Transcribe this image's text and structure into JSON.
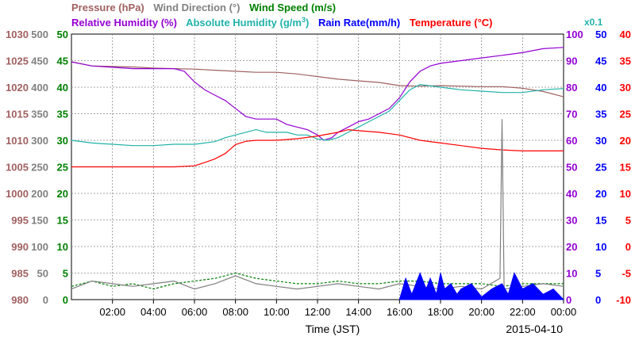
{
  "chart_data": {
    "type": "line",
    "date": "2015-04-10",
    "xlabel": "Time (JST)",
    "x_range": [
      0,
      24
    ],
    "x_ticks": [
      "02:00",
      "04:00",
      "06:00",
      "08:00",
      "10:00",
      "12:00",
      "14:00",
      "16:00",
      "18:00",
      "20:00",
      "22:00",
      "00:00"
    ],
    "grid": true,
    "titles": {
      "pressure": "Pressure (hPa)",
      "wind_direction": "Wind Direction (°)",
      "wind_speed": "Wind Speed (m/s)",
      "relative_humidity": "Relative Humidity (%)",
      "absolute_humidity": "Absolute Humidity (g/m",
      "absolute_humidity_sup": "3",
      "absolute_humidity_end": ")",
      "rain_rate": "Rain Rate(mm/h)",
      "temperature": "Temperature (°C)",
      "scale_note": "x0.1"
    },
    "colors": {
      "pressure": "#a06060",
      "wind_direction": "#808080",
      "wind_speed": "#008000",
      "relative_humidity": "#9400d3",
      "absolute_humidity": "#20b2aa",
      "rain_rate": "#0000ff",
      "temperature": "#ff0000"
    },
    "axes": {
      "pressure": {
        "ticks": [
          "980",
          "985",
          "990",
          "995",
          "1000",
          "1005",
          "1010",
          "1015",
          "1020",
          "1025",
          "1030"
        ],
        "range": [
          980,
          1030
        ]
      },
      "wind_direction": {
        "ticks": [
          "0",
          "50",
          "100",
          "150",
          "200",
          "250",
          "300",
          "350",
          "400",
          "450",
          "500"
        ],
        "range": [
          0,
          500
        ]
      },
      "wind_speed": {
        "ticks": [
          "0",
          "5",
          "10",
          "15",
          "20",
          "25",
          "30",
          "35",
          "40",
          "45",
          "50"
        ],
        "range": [
          0,
          50
        ]
      },
      "relative_humidity": {
        "ticks": [
          "0",
          "10",
          "20",
          "30",
          "40",
          "50",
          "60",
          "70",
          "80",
          "90",
          "100"
        ],
        "range": [
          0,
          100
        ]
      },
      "rain_rate": {
        "ticks": [
          "0",
          "5",
          "10",
          "15",
          "20",
          "25",
          "30",
          "35",
          "40",
          "45",
          "50"
        ],
        "range": [
          0,
          50
        ]
      },
      "temperature": {
        "ticks": [
          "-10",
          "-5",
          "0",
          "5",
          "10",
          "15",
          "20",
          "25",
          "30",
          "35",
          "40"
        ],
        "range": [
          -10,
          40
        ]
      }
    },
    "series": [
      {
        "key": "pressure",
        "unit": "hPa",
        "x": [
          0,
          1,
          2,
          3,
          4,
          5,
          6,
          7,
          8,
          9,
          10,
          11,
          12,
          13,
          14,
          15,
          16,
          17,
          18,
          19,
          20,
          21,
          22,
          23,
          24
        ],
        "y": [
          1024.8,
          1024.0,
          1023.9,
          1023.8,
          1023.6,
          1023.5,
          1023.4,
          1023.2,
          1023.0,
          1022.8,
          1022.8,
          1022.5,
          1022.0,
          1021.5,
          1021.2,
          1020.9,
          1020.3,
          1020.2,
          1020.3,
          1020.2,
          1020.1,
          1020.1,
          1019.8,
          1019.2,
          1018.2
        ]
      },
      {
        "key": "relative_humidity",
        "unit": "%",
        "x": [
          0,
          1,
          2,
          3,
          4,
          5,
          5.5,
          6,
          6.5,
          7,
          7.5,
          8,
          8.5,
          9,
          9.5,
          10,
          10.5,
          11,
          11.5,
          12,
          12.3,
          12.7,
          13,
          13.5,
          14,
          14.5,
          15,
          15.5,
          16,
          16.5,
          17,
          17.5,
          18,
          19,
          20,
          21,
          22,
          23,
          24
        ],
        "y": [
          89.5,
          88,
          87.5,
          87,
          87,
          87,
          86,
          82,
          79,
          77,
          75,
          72,
          69,
          68,
          68,
          68,
          66,
          65,
          64,
          62,
          60,
          61,
          63,
          65,
          67,
          68,
          70,
          72,
          76,
          82,
          86,
          88,
          89,
          90,
          91,
          92,
          93,
          94.5,
          95
        ]
      },
      {
        "key": "absolute_humidity",
        "unit": "g/m3 x0.1",
        "x": [
          0,
          1,
          2,
          3,
          4,
          5,
          6,
          7,
          7.5,
          8,
          8.5,
          9,
          9.5,
          10,
          10.5,
          11,
          11.5,
          12,
          12.5,
          13,
          13.5,
          14,
          14.5,
          15,
          15.5,
          16,
          16.5,
          17,
          18,
          19,
          20,
          21,
          22,
          23,
          24
        ],
        "y": [
          60,
          59,
          58.5,
          58,
          58,
          58.5,
          58.5,
          59.5,
          61,
          62,
          63,
          64,
          63,
          63,
          63,
          62,
          62,
          60.5,
          60,
          61,
          63,
          65,
          67,
          69,
          71,
          75,
          79,
          81,
          80,
          79,
          78.5,
          78,
          78,
          79,
          79.5
        ]
      },
      {
        "key": "temperature",
        "unit": "°C",
        "x": [
          0,
          1,
          2,
          3,
          4,
          5,
          6,
          6.5,
          7,
          7.5,
          8,
          8.5,
          9,
          10,
          11,
          12,
          13,
          13.5,
          14,
          15,
          16,
          17,
          18,
          19,
          20,
          21,
          22,
          23,
          24
        ],
        "y": [
          15,
          15,
          15,
          15,
          15,
          15,
          15.2,
          15.8,
          16.5,
          17.5,
          19.2,
          19.8,
          20,
          20,
          20.3,
          20.8,
          21.5,
          22,
          21.8,
          21.5,
          21,
          20,
          19.5,
          19,
          18.5,
          18.2,
          18,
          18,
          18
        ]
      },
      {
        "key": "wind_speed",
        "unit": "m/s",
        "x": [
          0,
          1,
          2,
          3,
          4,
          5,
          6,
          7,
          8,
          9,
          10,
          11,
          12,
          13,
          14,
          15,
          16,
          17,
          18,
          19,
          20,
          21,
          22,
          23,
          24
        ],
        "y": [
          2.5,
          3.5,
          2.5,
          3,
          2,
          3,
          3.5,
          4,
          5,
          4,
          3.5,
          3,
          3,
          3.5,
          3,
          3,
          3.5,
          3.5,
          3,
          3,
          3,
          2.5,
          3,
          3,
          3
        ]
      },
      {
        "key": "wind_direction",
        "unit": "°",
        "x": [
          0,
          1,
          2,
          3,
          4,
          5,
          6,
          7,
          8,
          9,
          10,
          11,
          12,
          13,
          14,
          15,
          16,
          17,
          18,
          19,
          20,
          20.9,
          21.0,
          21.1,
          22,
          23,
          24
        ],
        "y": [
          20,
          35,
          30,
          25,
          30,
          35,
          20,
          30,
          45,
          30,
          25,
          20,
          25,
          30,
          25,
          20,
          30,
          25,
          20,
          25,
          20,
          40,
          340,
          20,
          25,
          30,
          25
        ]
      },
      {
        "key": "rain_rate",
        "unit": "mm/h",
        "x": [
          16,
          16.3,
          16.6,
          17,
          17.3,
          17.5,
          17.8,
          18,
          18.2,
          18.5,
          18.8,
          19,
          19.5,
          20,
          20.5,
          21,
          21.3,
          21.6,
          22,
          22.5,
          23,
          23.5,
          24
        ],
        "y": [
          0,
          4,
          1,
          5,
          2,
          4,
          1,
          5,
          2,
          3,
          1,
          2,
          3,
          0.5,
          2,
          3,
          1,
          5,
          2,
          3,
          1,
          2,
          0
        ]
      }
    ]
  }
}
